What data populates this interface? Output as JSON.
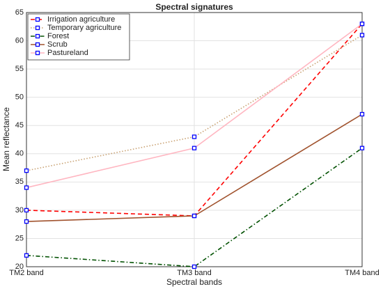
{
  "chart_data": {
    "type": "line",
    "title": "Spectral signatures",
    "x_label": "Spectral bands",
    "y_label": "Mean reflectance",
    "categories": [
      "TM2 band",
      "TM3 band",
      "TM4 band"
    ],
    "series": [
      {
        "name": "Irrigation agriculture",
        "color": "#ff0000",
        "linestyle": "dashed",
        "values": [
          30,
          29,
          63
        ]
      },
      {
        "name": "Temporary agriculture",
        "color": "#c8a070",
        "linestyle": "dotted",
        "values": [
          37,
          43,
          61
        ]
      },
      {
        "name": "Forest",
        "color": "#005000",
        "linestyle": "dashdot",
        "values": [
          22,
          20,
          41
        ]
      },
      {
        "name": "Scrub",
        "color": "#a0522d",
        "linestyle": "solid",
        "values": [
          28,
          29,
          47
        ]
      },
      {
        "name": "Pastureland",
        "color": "#ffb6c1",
        "linestyle": "solid",
        "values": [
          34,
          41,
          63
        ]
      }
    ],
    "marker_color": "#0000ff",
    "ylim": [
      20,
      65
    ],
    "yticks": [
      20,
      25,
      30,
      35,
      40,
      45,
      50,
      55,
      60,
      65
    ],
    "grid": true,
    "legend": "upper left"
  }
}
